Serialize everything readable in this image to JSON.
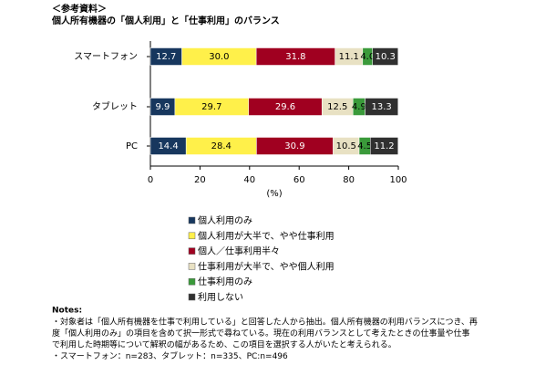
{
  "chart_data": {
    "type": "stacked-barh",
    "title": "＜参考資料＞",
    "subtitle": "個人所有機器の「個人利用」と「仕事利用」のバランス",
    "categories": [
      "スマートフォン",
      "タブレット",
      "PC"
    ],
    "series": [
      {
        "name": "個人利用のみ",
        "color": "#17375e",
        "values": [
          12.7,
          9.9,
          14.4
        ],
        "value_labels": [
          "12.7",
          "9.9",
          "14.4"
        ]
      },
      {
        "name": "個人利用が大半で、やや仕事利用",
        "color": "#fff04a",
        "values": [
          30.0,
          29.7,
          28.4
        ],
        "value_labels": [
          "30.0",
          "29.7",
          "28.4"
        ]
      },
      {
        "name": "個人／仕事利用半々",
        "color": "#a00020",
        "values": [
          31.8,
          29.6,
          30.9
        ],
        "value_labels": [
          "31.8",
          "29.6",
          "30.9"
        ]
      },
      {
        "name": "仕事利用が大半で、やや個人利用",
        "color": "#e8e1c3",
        "values": [
          11.1,
          12.5,
          10.5
        ],
        "value_labels": [
          "11.1",
          "12.5",
          "10.5"
        ]
      },
      {
        "name": "仕事利用のみ",
        "color": "#3a9a3a",
        "values": [
          4.0,
          4.9,
          4.5
        ],
        "value_labels": [
          "4.0",
          "4.9",
          "4.5"
        ]
      },
      {
        "name": "利用しない",
        "color": "#303030",
        "values": [
          10.3,
          13.3,
          11.2
        ],
        "value_labels": [
          "10.3",
          "13.3",
          "11.2"
        ]
      }
    ],
    "xlim": [
      0,
      100
    ],
    "xticks": [
      0,
      20,
      40,
      60,
      80,
      100
    ],
    "xlabel": "(%)",
    "notes_title": "Notes:",
    "notes": [
      "・対象者は「個人所有機器を仕事で利用している」と回答した人から抽出。個人所有機器の利用バランスにつき、再",
      "度「個人利用のみ」の項目を含めて択一形式で尋ねている。現在の利用バランスとして考えたときの仕事量や仕事",
      "で利用した時期等について解釈の幅があるため、この項目を選択する人がいたと考えられる。",
      "・スマートフォン：n=283、タブレット：n=335、PC:n=496"
    ]
  }
}
